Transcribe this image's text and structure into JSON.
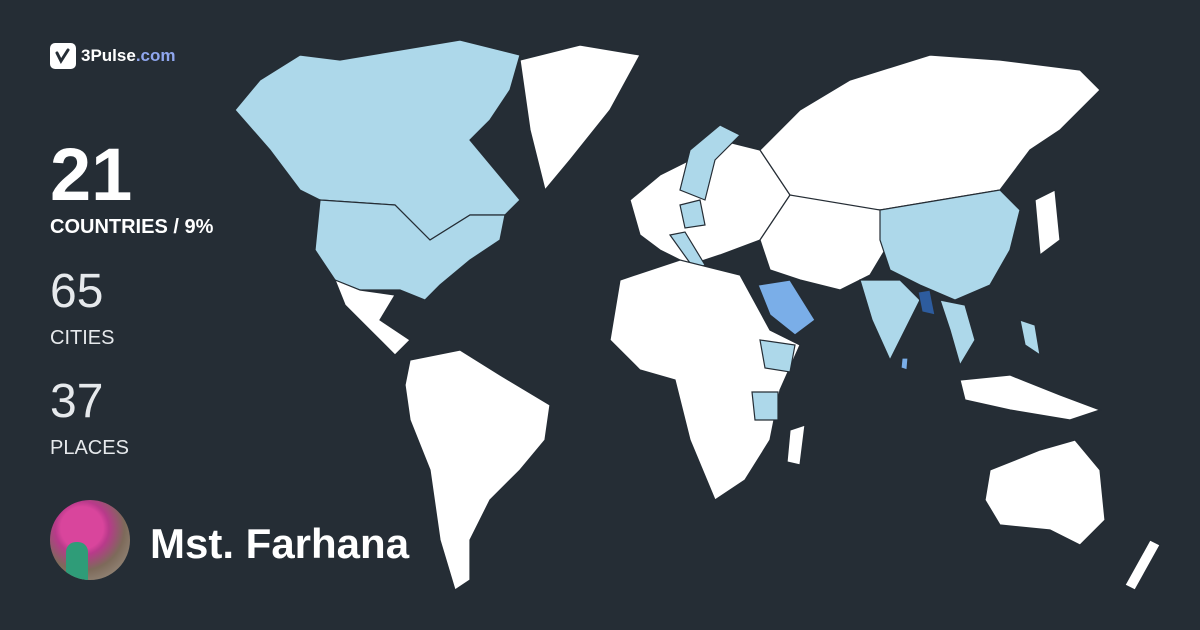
{
  "brand": {
    "name": "3Pulse",
    "domain": ".com",
    "accent": "#8fa6ee"
  },
  "stats": {
    "countries": {
      "value": "21",
      "label": "COUNTRIES / 9%"
    },
    "cities": {
      "value": "65",
      "label": "CITIES"
    },
    "places": {
      "value": "37",
      "label": "PLACES"
    }
  },
  "user": {
    "name": "Mst. Farhana"
  },
  "map": {
    "colors": {
      "background": "#252d35",
      "unvisited": "#ffffff",
      "visited": "#add8ea",
      "visited_more": "#7aaee8",
      "home": "#2d5c9e",
      "border": "#252d35"
    }
  }
}
